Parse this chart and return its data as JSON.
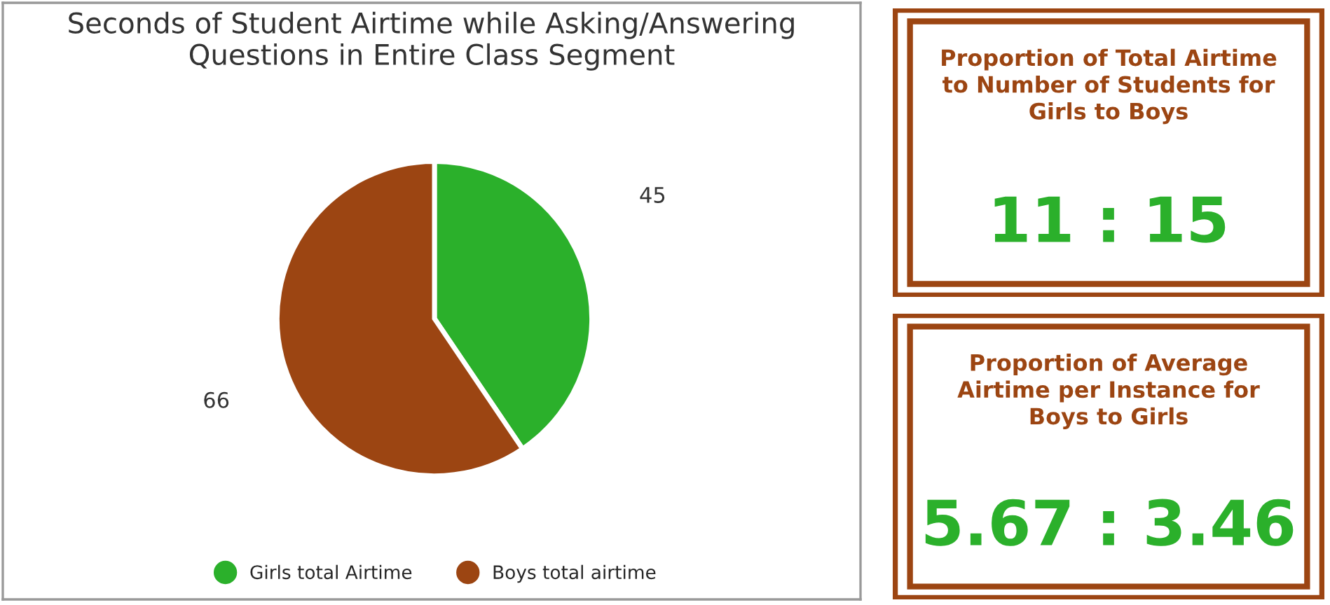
{
  "chart_data": [
    {
      "type": "pie",
      "title": "Seconds of Student Airtime while Asking/Answering Questions in Entire Class Segment",
      "categories": [
        "Girls total Airtime",
        "Boys total airtime"
      ],
      "values": [
        45,
        66
      ],
      "colors": [
        "#2bb02b",
        "#9c4512"
      ],
      "data_labels": true,
      "legend": "bottom"
    },
    {
      "type": "other",
      "title": "Proportion of Total Airtime to Number of Students for Girls to Boys",
      "annotations": [
        "11 : 15"
      ]
    },
    {
      "type": "other",
      "title": "Proportion of Average Airtime per Instance for Boys to Girls",
      "annotations": [
        "5.67 : 3.46"
      ]
    }
  ]
}
